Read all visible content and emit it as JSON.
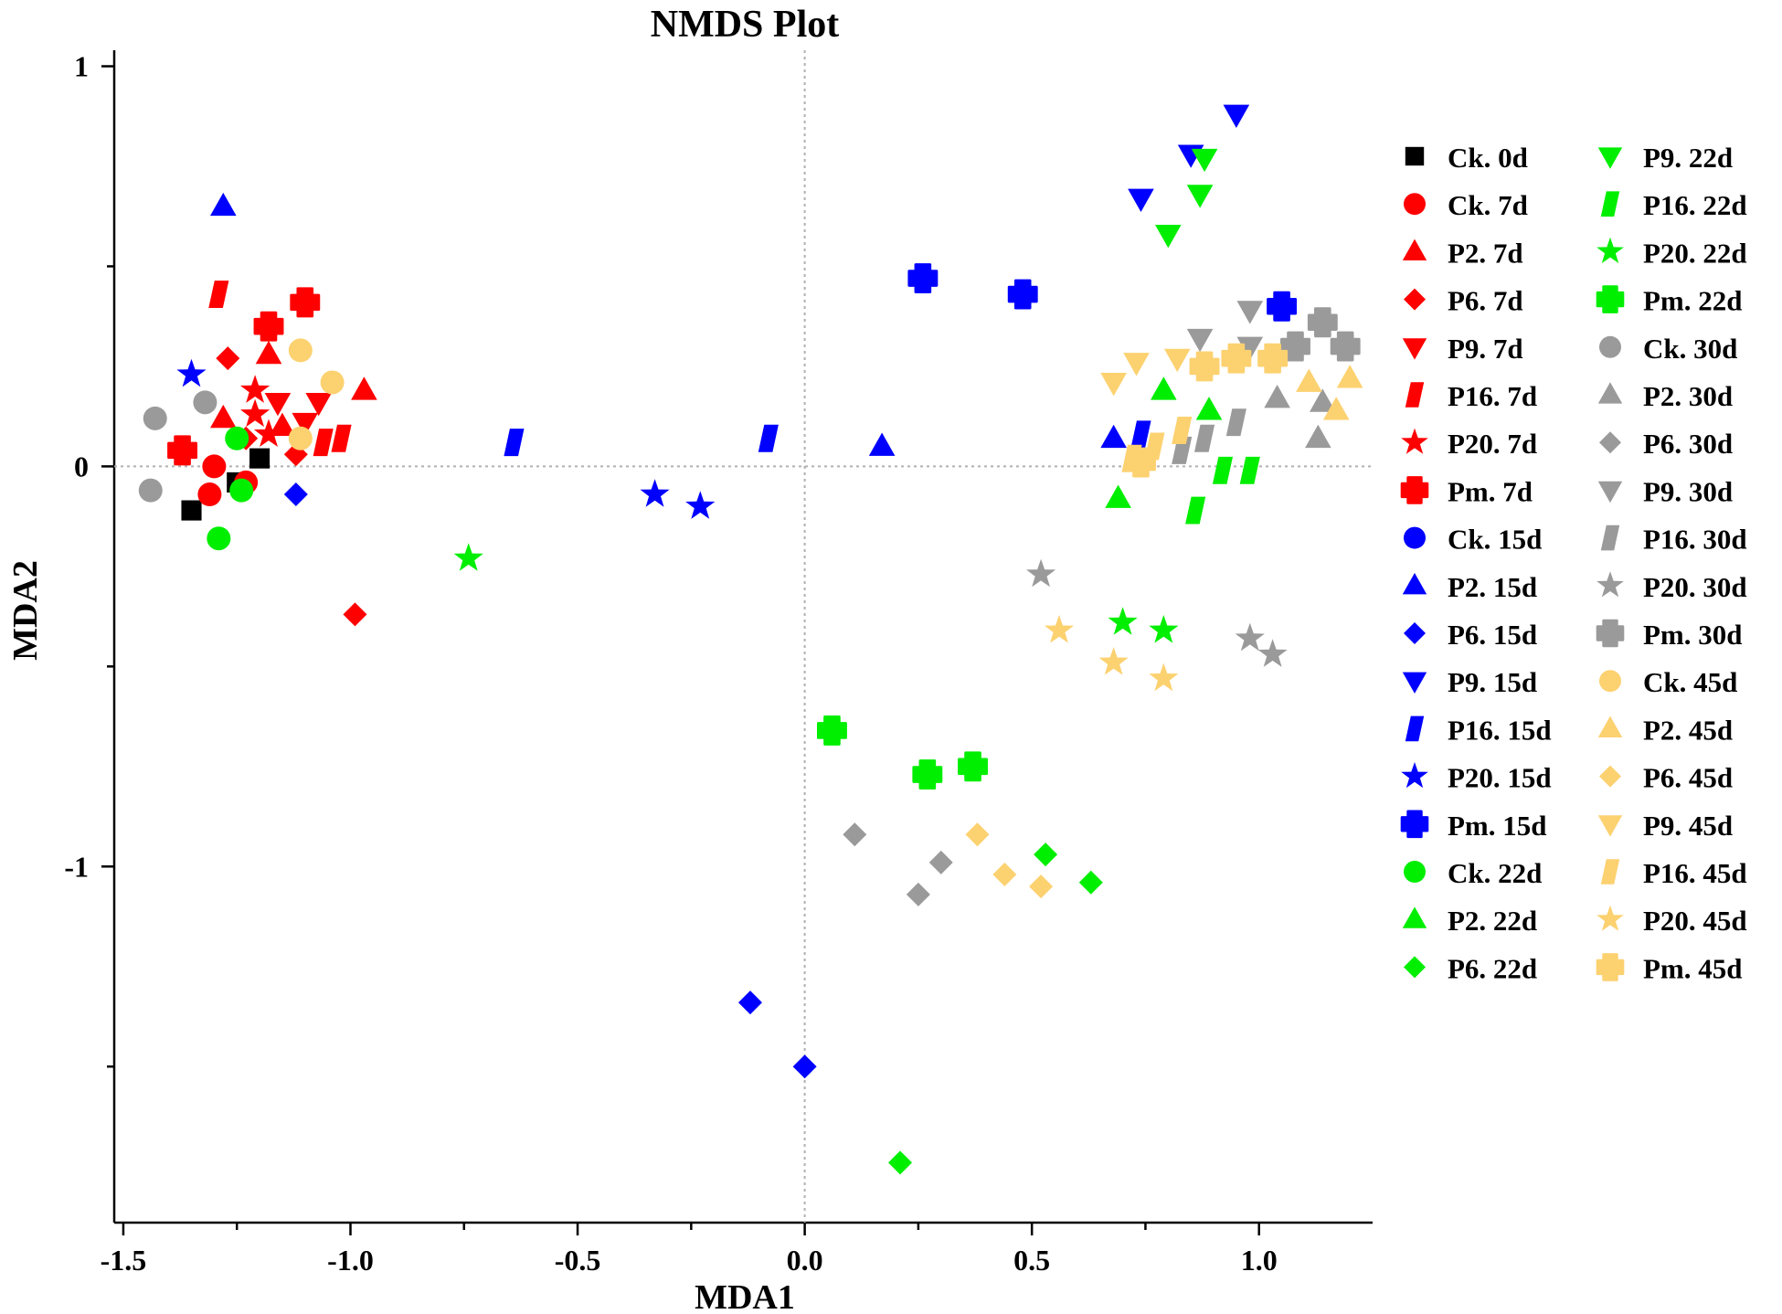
{
  "chart_data": {
    "type": "scatter",
    "title": "NMDS Plot",
    "xlabel": "MDA1",
    "ylabel": "MDA2",
    "xlim": [
      -1.52,
      1.25
    ],
    "ylim": [
      -1.89,
      1.04
    ],
    "xticks": [
      -1.5,
      -1.0,
      -0.5,
      0.0,
      0.5,
      1.0
    ],
    "xtick_labels": [
      "-1.5",
      "-1.0",
      "-0.5",
      "0.0",
      "0.5",
      "1.0"
    ],
    "yticks": [
      -1,
      0,
      1
    ],
    "ytick_labels": [
      "-1",
      "0",
      "1"
    ],
    "reference_lines": {
      "x": 0,
      "y": 0
    },
    "legend_position": "right",
    "colors": {
      "Ck": "#000000",
      "7d": "#ff0000",
      "15d": "#0000ff",
      "22d": "#00ee00",
      "30d": "#9a9a9a",
      "45d": "#fcd170"
    },
    "series": [
      {
        "name": "Ck. 0d",
        "color": "#000000",
        "marker": "square",
        "points": [
          [
            -1.35,
            -0.11
          ],
          [
            -1.25,
            -0.04
          ],
          [
            -1.2,
            0.02
          ]
        ]
      },
      {
        "name": "Ck. 7d",
        "color": "#ff0000",
        "marker": "circle",
        "points": [
          [
            -1.31,
            -0.07
          ],
          [
            -1.3,
            0.0
          ],
          [
            -1.23,
            -0.04
          ]
        ]
      },
      {
        "name": "P2. 7d",
        "color": "#ff0000",
        "marker": "triangle-up",
        "points": [
          [
            -1.28,
            0.12
          ],
          [
            -1.18,
            0.28
          ],
          [
            -0.97,
            0.19
          ],
          [
            -1.15,
            0.1
          ]
        ]
      },
      {
        "name": "P6. 7d",
        "color": "#ff0000",
        "marker": "diamond",
        "points": [
          [
            -1.27,
            0.27
          ],
          [
            -1.23,
            0.07
          ],
          [
            -1.12,
            0.03
          ],
          [
            -0.99,
            -0.37
          ]
        ]
      },
      {
        "name": "P9. 7d",
        "color": "#ff0000",
        "marker": "triangle-down",
        "points": [
          [
            -1.16,
            0.16
          ],
          [
            -1.1,
            0.11
          ],
          [
            -1.07,
            0.16
          ]
        ]
      },
      {
        "name": "P16. 7d",
        "color": "#ff0000",
        "marker": "parallelogram",
        "points": [
          [
            -1.29,
            0.43
          ],
          [
            -1.06,
            0.06
          ],
          [
            -1.02,
            0.07
          ]
        ]
      },
      {
        "name": "P20. 7d",
        "color": "#ff0000",
        "marker": "star",
        "points": [
          [
            -1.21,
            0.19
          ],
          [
            -1.21,
            0.13
          ],
          [
            -1.18,
            0.08
          ]
        ]
      },
      {
        "name": "Pm. 7d",
        "color": "#ff0000",
        "marker": "cross",
        "points": [
          [
            -1.37,
            0.04
          ],
          [
            -1.18,
            0.35
          ],
          [
            -1.1,
            0.41
          ]
        ]
      },
      {
        "name": "Ck. 15d",
        "color": "#0000ff",
        "marker": "circle",
        "points": []
      },
      {
        "name": "P2. 15d",
        "color": "#0000ff",
        "marker": "triangle-up",
        "points": [
          [
            -1.28,
            0.65
          ],
          [
            0.17,
            0.05
          ],
          [
            0.68,
            0.07
          ]
        ]
      },
      {
        "name": "P6. 15d",
        "color": "#0000ff",
        "marker": "diamond",
        "points": [
          [
            -1.12,
            -0.07
          ],
          [
            -0.12,
            -1.34
          ],
          [
            0.0,
            -1.5
          ]
        ]
      },
      {
        "name": "P9. 15d",
        "color": "#0000ff",
        "marker": "triangle-down",
        "points": [
          [
            0.74,
            0.67
          ],
          [
            0.85,
            0.78
          ],
          [
            0.95,
            0.88
          ]
        ]
      },
      {
        "name": "P16. 15d",
        "color": "#0000ff",
        "marker": "parallelogram",
        "points": [
          [
            -0.64,
            0.06
          ],
          [
            -0.08,
            0.07
          ],
          [
            0.74,
            0.08
          ]
        ]
      },
      {
        "name": "P20. 15d",
        "color": "#0000ff",
        "marker": "star",
        "points": [
          [
            -1.35,
            0.23
          ],
          [
            -0.33,
            -0.07
          ],
          [
            -0.23,
            -0.1
          ]
        ]
      },
      {
        "name": "Pm. 15d",
        "color": "#0000ff",
        "marker": "cross",
        "points": [
          [
            0.26,
            0.47
          ],
          [
            0.48,
            0.43
          ],
          [
            1.05,
            0.4
          ]
        ]
      },
      {
        "name": "Ck. 22d",
        "color": "#00ee00",
        "marker": "circle",
        "points": [
          [
            -1.25,
            0.07
          ],
          [
            -1.24,
            -0.06
          ],
          [
            -1.29,
            -0.18
          ]
        ]
      },
      {
        "name": "P2. 22d",
        "color": "#00ee00",
        "marker": "triangle-up",
        "points": [
          [
            0.69,
            -0.08
          ],
          [
            0.79,
            0.19
          ],
          [
            0.89,
            0.14
          ]
        ]
      },
      {
        "name": "P6. 22d",
        "color": "#00ee00",
        "marker": "diamond",
        "points": [
          [
            0.53,
            -0.97
          ],
          [
            0.63,
            -1.04
          ],
          [
            0.21,
            -1.74
          ]
        ]
      },
      {
        "name": "P9. 22d",
        "color": "#00ee00",
        "marker": "triangle-down",
        "points": [
          [
            0.8,
            0.58
          ],
          [
            0.87,
            0.68
          ],
          [
            0.88,
            0.77
          ]
        ]
      },
      {
        "name": "P16. 22d",
        "color": "#00ee00",
        "marker": "parallelogram",
        "points": [
          [
            0.86,
            -0.11
          ],
          [
            0.92,
            -0.01
          ],
          [
            0.98,
            -0.01
          ]
        ]
      },
      {
        "name": "P20. 22d",
        "color": "#00ee00",
        "marker": "star",
        "points": [
          [
            -0.74,
            -0.23
          ],
          [
            0.7,
            -0.39
          ],
          [
            0.79,
            -0.41
          ]
        ]
      },
      {
        "name": "Pm. 22d",
        "color": "#00ee00",
        "marker": "cross",
        "points": [
          [
            0.06,
            -0.66
          ],
          [
            0.27,
            -0.77
          ],
          [
            0.37,
            -0.75
          ]
        ]
      },
      {
        "name": "Ck. 30d",
        "color": "#9a9a9a",
        "marker": "circle",
        "points": [
          [
            -1.43,
            0.12
          ],
          [
            -1.44,
            -0.06
          ],
          [
            -1.32,
            0.16
          ]
        ]
      },
      {
        "name": "P2. 30d",
        "color": "#9a9a9a",
        "marker": "triangle-up",
        "points": [
          [
            1.04,
            0.17
          ],
          [
            1.13,
            0.07
          ],
          [
            1.14,
            0.16
          ]
        ]
      },
      {
        "name": "P6. 30d",
        "color": "#9a9a9a",
        "marker": "diamond",
        "points": [
          [
            0.11,
            -0.92
          ],
          [
            0.25,
            -1.07
          ],
          [
            0.3,
            -0.99
          ]
        ]
      },
      {
        "name": "P9. 30d",
        "color": "#9a9a9a",
        "marker": "triangle-down",
        "points": [
          [
            0.87,
            0.32
          ],
          [
            0.98,
            0.39
          ],
          [
            0.98,
            0.3
          ]
        ]
      },
      {
        "name": "P16. 30d",
        "color": "#9a9a9a",
        "marker": "parallelogram",
        "points": [
          [
            0.83,
            0.04
          ],
          [
            0.88,
            0.07
          ],
          [
            0.95,
            0.11
          ]
        ]
      },
      {
        "name": "P20. 30d",
        "color": "#9a9a9a",
        "marker": "star",
        "points": [
          [
            0.52,
            -0.27
          ],
          [
            0.98,
            -0.43
          ],
          [
            1.03,
            -0.47
          ]
        ]
      },
      {
        "name": "Pm. 30d",
        "color": "#9a9a9a",
        "marker": "cross",
        "points": [
          [
            1.08,
            0.3
          ],
          [
            1.14,
            0.36
          ],
          [
            1.19,
            0.3
          ]
        ]
      },
      {
        "name": "Ck. 45d",
        "color": "#fcd170",
        "marker": "circle",
        "points": [
          [
            -1.11,
            0.29
          ],
          [
            -1.11,
            0.07
          ],
          [
            -1.04,
            0.21
          ]
        ]
      },
      {
        "name": "P2. 45d",
        "color": "#fcd170",
        "marker": "triangle-up",
        "points": [
          [
            1.11,
            0.21
          ],
          [
            1.17,
            0.14
          ],
          [
            1.2,
            0.22
          ]
        ]
      },
      {
        "name": "P6. 45d",
        "color": "#fcd170",
        "marker": "diamond",
        "points": [
          [
            0.38,
            -0.92
          ],
          [
            0.44,
            -1.02
          ],
          [
            0.52,
            -1.05
          ]
        ]
      },
      {
        "name": "P9. 45d",
        "color": "#fcd170",
        "marker": "triangle-down",
        "points": [
          [
            0.68,
            0.21
          ],
          [
            0.73,
            0.26
          ],
          [
            0.82,
            0.27
          ]
        ]
      },
      {
        "name": "P16. 45d",
        "color": "#fcd170",
        "marker": "parallelogram",
        "points": [
          [
            0.72,
            0.02
          ],
          [
            0.77,
            0.05
          ],
          [
            0.83,
            0.09
          ]
        ]
      },
      {
        "name": "P20. 45d",
        "color": "#fcd170",
        "marker": "star",
        "points": [
          [
            0.56,
            -0.41
          ],
          [
            0.68,
            -0.49
          ],
          [
            0.79,
            -0.53
          ]
        ]
      },
      {
        "name": "Pm. 45d",
        "color": "#fcd170",
        "marker": "cross",
        "points": [
          [
            0.74,
            0.01
          ],
          [
            0.88,
            0.25
          ],
          [
            0.95,
            0.27
          ],
          [
            1.03,
            0.27
          ]
        ]
      }
    ]
  }
}
